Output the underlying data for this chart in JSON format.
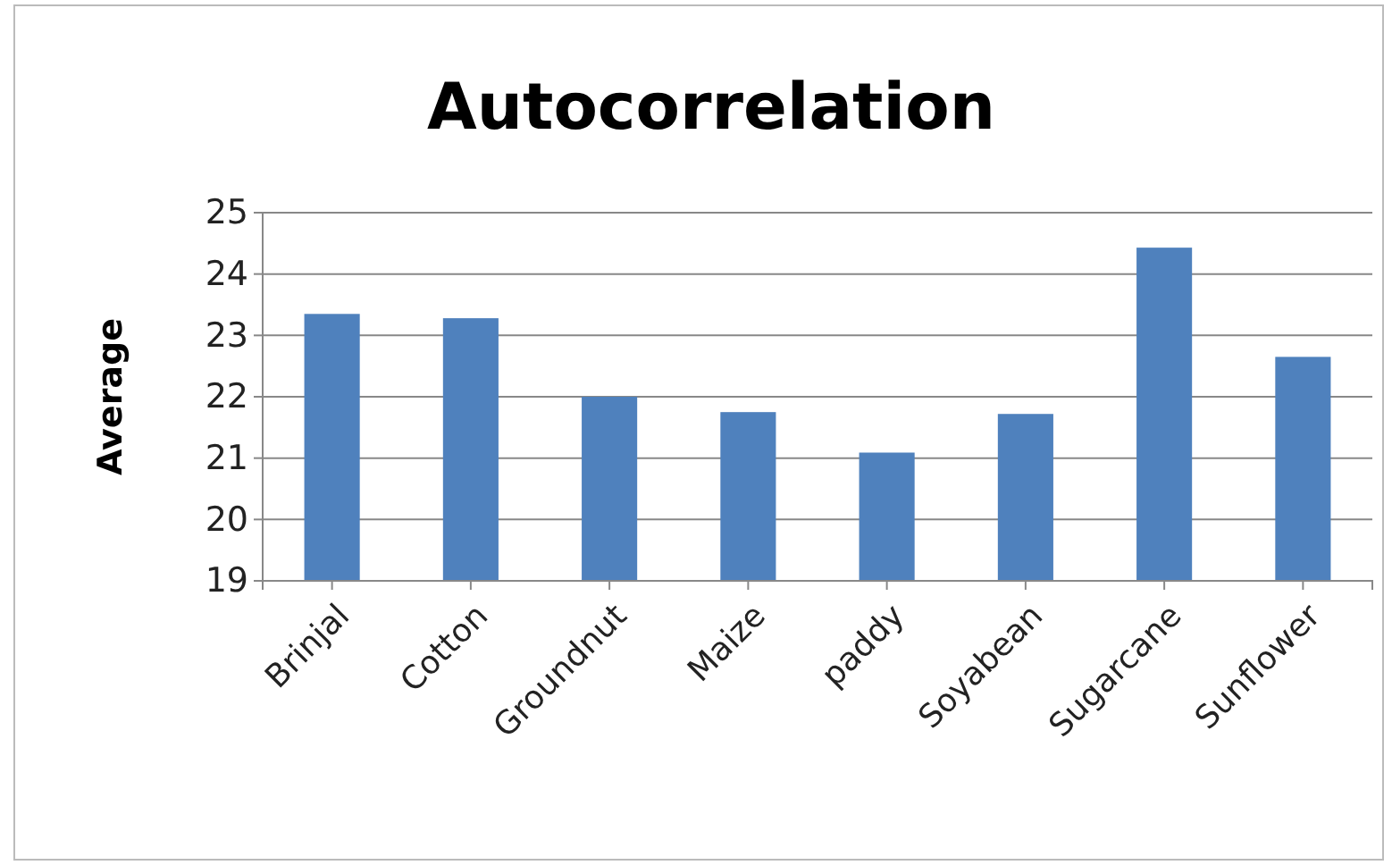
{
  "chart_data": {
    "type": "bar",
    "title": "Autocorrelation",
    "ylabel": "Average",
    "categories": [
      "Brinjal",
      "Cotton",
      "Groundnut",
      "Maize",
      "paddy",
      "Soyabean",
      "Sugarcane",
      "Sunflower"
    ],
    "values": [
      23.35,
      23.28,
      22.0,
      21.75,
      21.09,
      21.72,
      24.43,
      22.65
    ],
    "color": "#4f81bd",
    "ylim": [
      19,
      25
    ],
    "yticks": [
      19,
      20,
      21,
      22,
      23,
      24,
      25
    ],
    "grid": "y"
  }
}
